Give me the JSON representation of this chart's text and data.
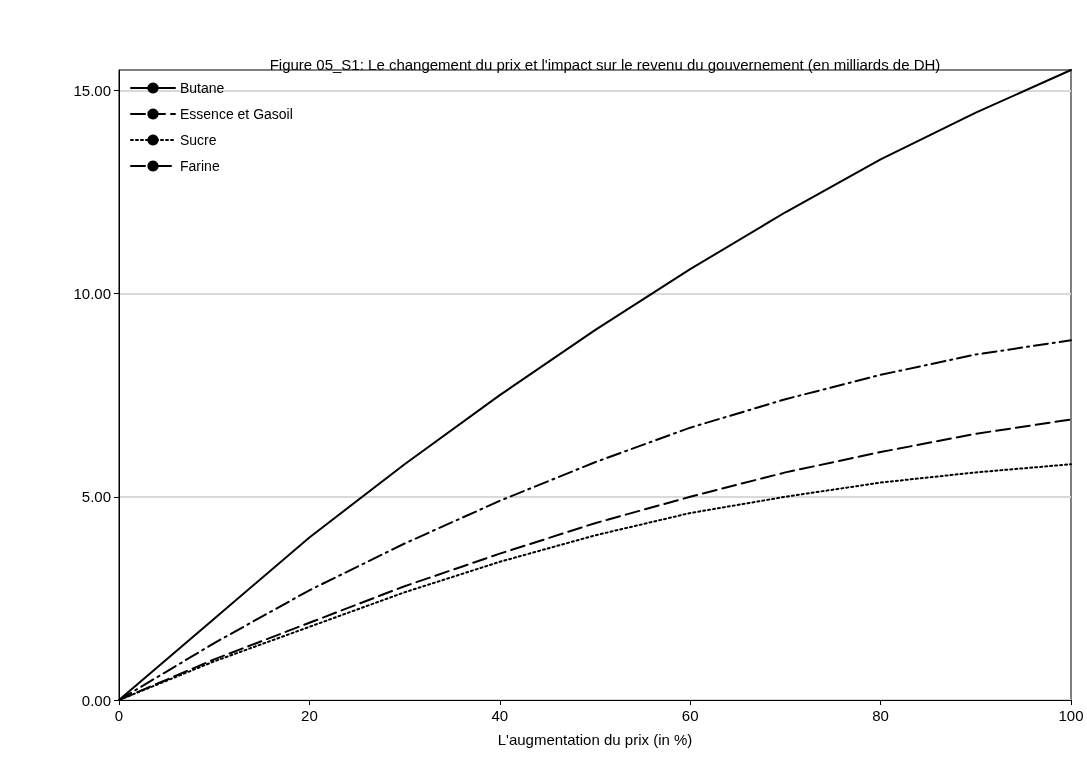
{
  "chart_data": {
    "type": "line",
    "title": "Figure 05_S1: Le changement du prix et l'impact sur le revenu du gouvernement (en milliards de DH)",
    "xlabel": "L'augmentation du prix (in %)",
    "x": [
      0,
      10,
      20,
      30,
      40,
      50,
      60,
      70,
      80,
      90,
      100
    ],
    "series": [
      {
        "name": "Butane",
        "color": "#000000",
        "line_style": "solid",
        "values": [
          0,
          2.0,
          4.0,
          5.8,
          7.5,
          9.1,
          10.6,
          12.0,
          13.3,
          14.45,
          15.5
        ]
      },
      {
        "name": "Essence et Gasoil",
        "color": "#000000",
        "line_style": "dashed",
        "values": [
          0,
          1.0,
          1.9,
          2.8,
          3.6,
          4.35,
          5.0,
          5.6,
          6.1,
          6.55,
          6.9
        ]
      },
      {
        "name": "Sucre",
        "color": "#000000",
        "line_style": "dotted",
        "values": [
          0,
          0.95,
          1.8,
          2.65,
          3.4,
          4.05,
          4.6,
          5.0,
          5.35,
          5.6,
          5.8
        ]
      },
      {
        "name": "Farine",
        "color": "#000000",
        "line_style": "dashdot",
        "values": [
          0,
          1.4,
          2.7,
          3.85,
          4.9,
          5.85,
          6.7,
          7.4,
          8.0,
          8.5,
          8.85
        ]
      }
    ],
    "xlim": [
      0,
      100
    ],
    "xticks": [
      0,
      20,
      40,
      60,
      80,
      100
    ],
    "ylim": [
      0,
      15.5
    ],
    "yticks": [
      {
        "value": 0,
        "label": "0.00"
      },
      {
        "value": 5,
        "label": "5.00"
      },
      {
        "value": 10,
        "label": "10.00"
      },
      {
        "value": 15,
        "label": "15.00"
      }
    ],
    "grid": "y",
    "legend": "top left",
    "marker": "none"
  }
}
